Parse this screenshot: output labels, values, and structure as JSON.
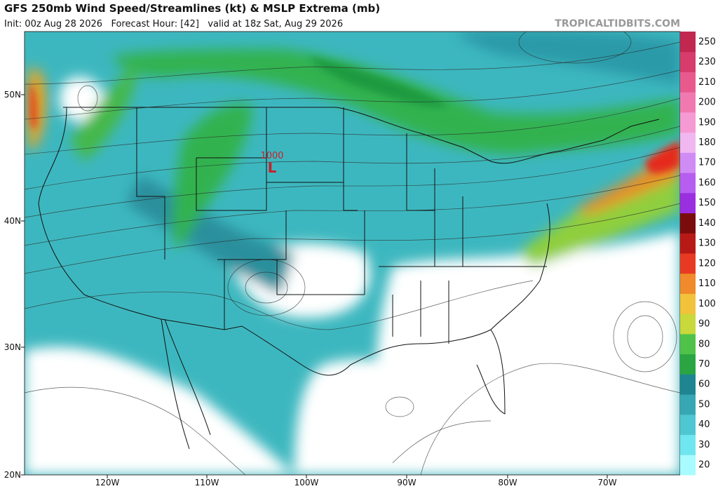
{
  "header": {
    "title": "GFS 250mb Wind Speed/Streamlines (kt) & MSLP Extrema (mb)",
    "subtitle": "Init: 00z Aug 28 2026   Forecast Hour: [42]   valid at 18z Sat, Aug 29 2026",
    "site": "TROPICALTIDBITS.COM"
  },
  "map": {
    "lat_labels": [
      "50N",
      "40N",
      "30N",
      "20N"
    ],
    "lon_labels": [
      "120W",
      "110W",
      "100W",
      "90W",
      "80W",
      "70W"
    ],
    "pressure_extrema": [
      {
        "value": 1000,
        "symbol": "L"
      }
    ]
  },
  "colorbar": {
    "labels": [
      20,
      30,
      40,
      50,
      60,
      70,
      80,
      90,
      100,
      110,
      120,
      130,
      140,
      150,
      160,
      170,
      180,
      190,
      200,
      210,
      230,
      250
    ]
  }
}
